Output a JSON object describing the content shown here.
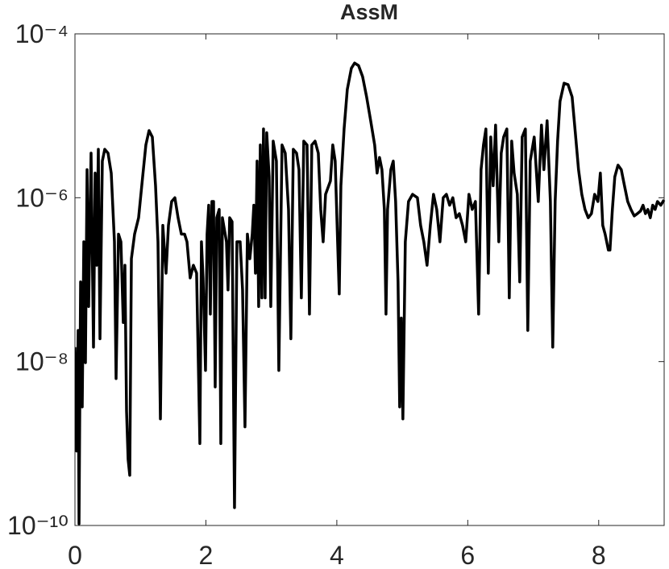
{
  "chart_data": {
    "type": "line",
    "title": "AssM",
    "xlim": [
      0,
      9
    ],
    "xticks": [
      0,
      2,
      4,
      6,
      8
    ],
    "ylim": [
      1e-10,
      0.0001
    ],
    "log_y": true,
    "yticks": [
      {
        "value": 1e-10,
        "label": "10⁻¹⁰"
      },
      {
        "value": 1e-08,
        "label": "10⁻⁸"
      },
      {
        "value": 1e-06,
        "label": "10⁻⁶"
      },
      {
        "value": 0.0001,
        "label": "10⁻⁴"
      }
    ],
    "x": [
      0,
      0.025,
      0.049,
      0.062,
      0.086,
      0.111,
      0.135,
      0.16,
      0.185,
      0.209,
      0.246,
      0.283,
      0.308,
      0.332,
      0.357,
      0.382,
      0.418,
      0.455,
      0.505,
      0.554,
      0.603,
      0.628,
      0.665,
      0.702,
      0.738,
      0.763,
      0.788,
      0.812,
      0.837,
      0.862,
      0.911,
      0.972,
      1.034,
      1.083,
      1.132,
      1.182,
      1.231,
      1.268,
      1.305,
      1.342,
      1.391,
      1.428,
      1.477,
      1.526,
      1.575,
      1.625,
      1.674,
      1.711,
      1.76,
      1.809,
      1.858,
      1.908,
      1.932,
      1.957,
      1.994,
      2.018,
      2.043,
      2.068,
      2.092,
      2.117,
      2.142,
      2.166,
      2.203,
      2.228,
      2.252,
      2.314,
      2.338,
      2.363,
      2.4,
      2.437,
      2.474,
      2.523,
      2.56,
      2.597,
      2.634,
      2.671,
      2.708,
      2.732,
      2.757,
      2.782,
      2.806,
      2.831,
      2.855,
      2.88,
      2.905,
      2.929,
      2.966,
      2.991,
      3.028,
      3.077,
      3.114,
      3.163,
      3.212,
      3.262,
      3.298,
      3.335,
      3.385,
      3.422,
      3.458,
      3.495,
      3.545,
      3.582,
      3.618,
      3.668,
      3.717,
      3.754,
      3.791,
      3.828,
      3.902,
      3.938,
      3.975,
      4.012,
      4.037,
      4.062,
      4.111,
      4.16,
      4.222,
      4.271,
      4.332,
      4.394,
      4.455,
      4.517,
      4.578,
      4.615,
      4.652,
      4.689,
      4.726,
      4.751,
      4.775,
      4.825,
      4.862,
      4.898,
      4.935,
      4.96,
      4.985,
      5.009,
      5.046,
      5.095,
      5.157,
      5.231,
      5.28,
      5.329,
      5.378,
      5.428,
      5.477,
      5.526,
      5.575,
      5.625,
      5.674,
      5.723,
      5.772,
      5.822,
      5.871,
      5.92,
      5.969,
      6.018,
      6.068,
      6.117,
      6.166,
      6.203,
      6.24,
      6.277,
      6.314,
      6.351,
      6.388,
      6.425,
      6.474,
      6.511,
      6.548,
      6.597,
      6.634,
      6.671,
      6.708,
      6.757,
      6.794,
      6.831,
      6.88,
      6.917,
      6.954,
      7.015,
      7.077,
      7.126,
      7.163,
      7.212,
      7.262,
      7.298,
      7.335,
      7.372,
      7.409,
      7.471,
      7.532,
      7.594,
      7.643,
      7.692,
      7.742,
      7.791,
      7.84,
      7.889,
      7.938,
      7.988,
      8.025,
      8.062,
      8.098,
      8.148,
      8.172,
      8.209,
      8.246,
      8.295,
      8.345,
      8.394,
      8.443,
      8.492,
      8.542,
      8.591,
      8.64,
      8.677,
      8.714,
      8.751,
      8.788,
      8.825,
      8.862,
      8.898,
      8.948,
      8.997
    ],
    "series": [
      {
        "color": "#000000",
        "values": [
          1.5e-08,
          8.1e-10,
          2.4e-08,
          1.05e-10,
          9.4e-08,
          2.8e-09,
          2.9e-07,
          9.7e-09,
          2.2e-06,
          4.7e-08,
          3.5e-06,
          1.5e-08,
          2e-06,
          1.5e-07,
          3.9e-06,
          1.9e-08,
          2.8e-06,
          3.9e-06,
          3.5e-06,
          2e-06,
          2.9e-07,
          6.2e-09,
          3.6e-07,
          2.9e-07,
          3e-08,
          1.5e-07,
          2.5e-09,
          6.4e-10,
          4.1e-10,
          1.8e-07,
          3.6e-07,
          5.7e-07,
          1.8e-06,
          4.4e-06,
          6.6e-06,
          5.5e-06,
          1.4e-06,
          2.9e-07,
          2e-09,
          4.6e-07,
          1.2e-07,
          4.6e-07,
          9e-07,
          1e-06,
          5.7e-07,
          3.6e-07,
          3.6e-07,
          2.9e-07,
          1.05e-07,
          1.5e-07,
          1.2e-07,
          1e-09,
          2.9e-07,
          1.05e-07,
          7.8e-09,
          3.6e-07,
          8.1e-07,
          3.8e-08,
          9e-07,
          9e-07,
          4.9e-09,
          5.7e-07,
          7.2e-07,
          1e-09,
          5.7e-07,
          2.9e-07,
          7.5e-08,
          5.7e-07,
          5.1e-07,
          1.65e-10,
          2.9e-07,
          2.9e-07,
          7.5e-08,
          1.6e-09,
          3.6e-07,
          1.8e-07,
          3.6e-07,
          8.1e-07,
          1.2e-07,
          2.8e-06,
          4.7e-08,
          4.4e-06,
          6e-08,
          6.9e-06,
          6e-08,
          6.2e-06,
          1.8e-06,
          4.7e-08,
          4.9e-06,
          2.8e-06,
          7.8e-09,
          4.4e-06,
          3.5e-06,
          7.2e-07,
          1.9e-08,
          3.9e-06,
          3.5e-06,
          2.2e-06,
          6e-08,
          4.9e-06,
          4.4e-06,
          3.8e-08,
          4.4e-06,
          4.9e-06,
          3.5e-06,
          7.2e-07,
          2.9e-07,
          1.1e-06,
          1.6e-06,
          4.4e-06,
          2.8e-06,
          2.9e-07,
          6.7e-08,
          1.4e-06,
          6.9e-06,
          2.1e-05,
          3.8e-05,
          4.4e-05,
          4.1e-05,
          3e-05,
          1.7e-05,
          8.7e-06,
          4.4e-06,
          2e-06,
          3.1e-06,
          2.2e-06,
          7.2e-07,
          3.8e-08,
          7.2e-07,
          2.2e-06,
          2.8e-06,
          9e-07,
          9.4e-08,
          2.8e-09,
          3.4e-08,
          2e-09,
          2.9e-07,
          9e-07,
          1.1e-06,
          1e-06,
          4.6e-07,
          2.9e-07,
          1.5e-07,
          4.6e-07,
          1.1e-06,
          7.2e-07,
          2.9e-07,
          1e-06,
          1.1e-06,
          8.1e-07,
          1e-06,
          5.7e-07,
          6.4e-07,
          4.6e-07,
          2.9e-07,
          1.1e-06,
          7.2e-07,
          9e-07,
          3.8e-08,
          2.2e-06,
          4.4e-06,
          6.9e-06,
          1.2e-07,
          5.5e-06,
          1.4e-06,
          7.7e-06,
          2.9e-07,
          3.5e-06,
          5.5e-06,
          6.9e-06,
          6e-08,
          4.9e-06,
          2e-06,
          1.1e-06,
          9.4e-08,
          5.5e-06,
          6.9e-06,
          2.4e-08,
          2.8e-06,
          5.5e-06,
          9e-07,
          7.7e-06,
          2.2e-06,
          8.7e-06,
          9e-07,
          1.5e-08,
          9e-07,
          4.9e-06,
          1.5e-05,
          2.5e-05,
          2.4e-05,
          1.7e-05,
          6.2e-06,
          2.2e-06,
          1.1e-06,
          7.2e-07,
          5.7e-07,
          6.4e-07,
          1.1e-06,
          9e-07,
          2e-06,
          4.6e-07,
          3.6e-07,
          2.3e-07,
          2.3e-07,
          7.2e-07,
          1.8e-06,
          2.5e-06,
          2.2e-06,
          1.4e-06,
          9e-07,
          7.2e-07,
          6e-07,
          6.4e-07,
          6.9e-07,
          8.1e-07,
          6.4e-07,
          7.2e-07,
          5.7e-07,
          8.1e-07,
          7.2e-07,
          9e-07,
          8.1e-07,
          9.4e-07
        ]
      }
    ]
  }
}
